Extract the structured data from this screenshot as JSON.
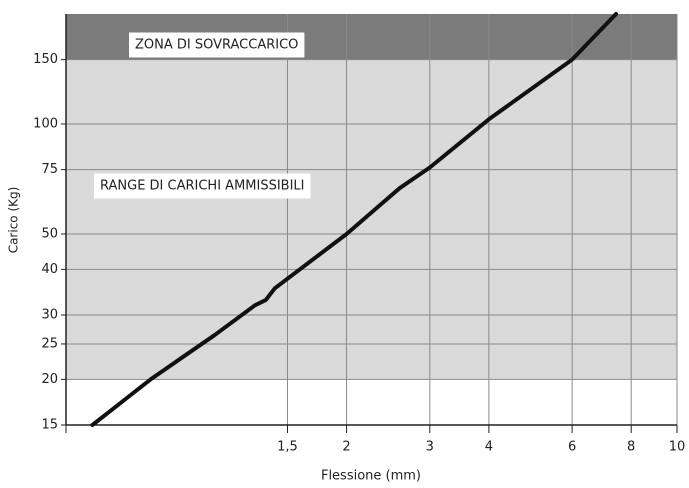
{
  "chart_data": {
    "type": "line",
    "x_label": "Flessione (mm)",
    "y_label": "Carico (Kg)",
    "xlog": true,
    "ylog": true,
    "grid": true,
    "xlim": [
      0.51,
      10
    ],
    "ylim": [
      15,
      200
    ],
    "xticks": [
      {
        "value": 1.5,
        "label": "1,5"
      },
      2,
      3,
      4,
      6,
      8,
      10
    ],
    "yticks": [
      15,
      20,
      25,
      30,
      40,
      50,
      75,
      100,
      150
    ],
    "zones": [
      {
        "label": "ZONA DI SOVRACCARICO",
        "from": 150,
        "to": 200,
        "color": "#7b7b7b"
      },
      {
        "label": "RANGE DI CARICHI AMMISSIBILI",
        "from": 20,
        "to": 150,
        "color": "#dadada"
      }
    ],
    "series": [
      {
        "color": "#111111",
        "x": [
          0.58,
          0.77,
          0.9,
          1.05,
          1.28,
          1.35,
          1.41,
          2.0,
          2.59,
          3.0,
          4.0,
          6.0,
          7.43
        ],
        "values": [
          15,
          20,
          23,
          26.4,
          31.9,
          33,
          35.5,
          50,
          66.7,
          76,
          103,
          150,
          200
        ]
      }
    ]
  }
}
